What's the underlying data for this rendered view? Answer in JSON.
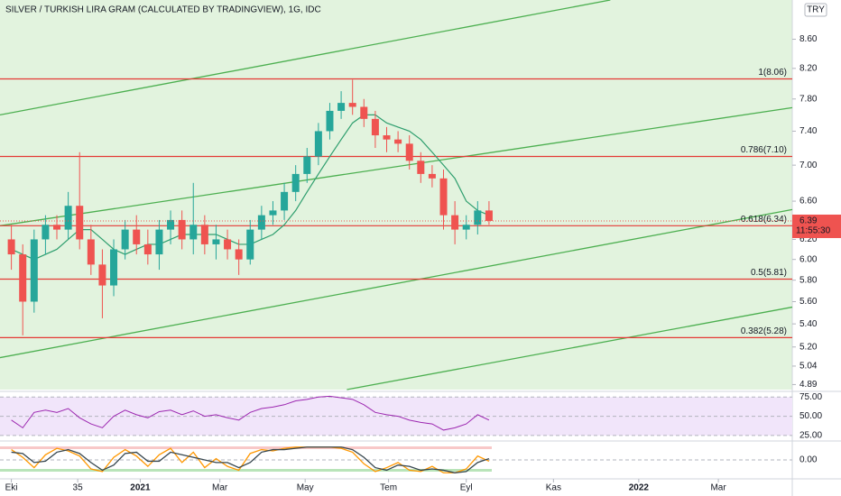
{
  "chart_data": {
    "type": "candlestick",
    "title": "SILVER / TURKISH LIRA GRAM (CALCULATED BY TRADINGVIEW), 1G, IDC",
    "currency": "TRY",
    "last_price": 6.39,
    "countdown": "11:55:30",
    "log_scale": true,
    "grid": false,
    "x": [
      0,
      6,
      12,
      18,
      24,
      30,
      36,
      42,
      48,
      54,
      60,
      66,
      72,
      78,
      84,
      90,
      96,
      102,
      108,
      114,
      120,
      126,
      132,
      138,
      144,
      150,
      156,
      162,
      168,
      174,
      180,
      186,
      192,
      198,
      204,
      210,
      216,
      222,
      228,
      234,
      240,
      246,
      252
    ],
    "open": [
      6.2,
      6.05,
      5.6,
      6.2,
      6.35,
      6.3,
      6.55,
      6.2,
      5.95,
      5.75,
      6.1,
      6.3,
      6.15,
      6.05,
      6.3,
      6.4,
      6.2,
      6.35,
      6.15,
      6.2,
      6.1,
      6.0,
      6.3,
      6.45,
      6.5,
      6.7,
      6.9,
      7.1,
      7.4,
      7.65,
      7.75,
      7.7,
      7.55,
      7.35,
      7.3,
      7.25,
      7.05,
      6.9,
      6.85,
      6.45,
      6.3,
      6.35,
      6.5
    ],
    "high": [
      6.35,
      6.15,
      6.3,
      6.45,
      6.45,
      6.7,
      7.15,
      6.35,
      6.1,
      6.2,
      6.4,
      6.45,
      6.3,
      6.4,
      6.5,
      6.5,
      6.8,
      6.45,
      6.35,
      6.3,
      6.2,
      6.4,
      6.55,
      6.6,
      6.8,
      7.0,
      7.2,
      7.5,
      7.75,
      7.9,
      8.05,
      7.8,
      7.65,
      7.45,
      7.4,
      7.35,
      7.15,
      7.0,
      6.95,
      6.6,
      6.45,
      6.6,
      6.6
    ],
    "low": [
      5.9,
      5.3,
      5.5,
      6.05,
      6.2,
      6.2,
      6.1,
      5.85,
      5.45,
      5.65,
      6.0,
      6.05,
      5.95,
      5.9,
      6.15,
      6.1,
      6.05,
      6.05,
      6.0,
      6.0,
      5.85,
      5.95,
      6.2,
      6.35,
      6.4,
      6.6,
      6.8,
      7.0,
      7.3,
      7.55,
      7.6,
      7.45,
      7.2,
      7.15,
      7.15,
      6.95,
      6.8,
      6.75,
      6.3,
      6.15,
      6.2,
      6.25,
      6.35
    ],
    "close": [
      6.05,
      5.6,
      6.2,
      6.35,
      6.3,
      6.55,
      6.2,
      5.95,
      5.75,
      6.1,
      6.3,
      6.15,
      6.05,
      6.3,
      6.4,
      6.2,
      6.35,
      6.15,
      6.2,
      6.1,
      6.0,
      6.3,
      6.45,
      6.5,
      6.7,
      6.9,
      7.1,
      7.4,
      7.65,
      7.75,
      7.7,
      7.55,
      7.35,
      7.3,
      7.25,
      7.05,
      6.9,
      6.85,
      6.45,
      6.3,
      6.35,
      6.5,
      6.39
    ],
    "up_color": "#26a69a",
    "down_color": "#ef5350",
    "ma": {
      "color": "#2e9e6e",
      "values": [
        6.1,
        6.05,
        6.0,
        6.05,
        6.1,
        6.2,
        6.3,
        6.3,
        6.2,
        6.1,
        6.05,
        6.1,
        6.15,
        6.15,
        6.2,
        6.25,
        6.25,
        6.25,
        6.25,
        6.2,
        6.15,
        6.15,
        6.2,
        6.25,
        6.35,
        6.5,
        6.7,
        6.9,
        7.1,
        7.3,
        7.5,
        7.6,
        7.6,
        7.5,
        7.45,
        7.4,
        7.3,
        7.15,
        7.0,
        6.85,
        6.6,
        6.5,
        6.45
      ]
    },
    "fib_color": "#e53935",
    "fib_levels": [
      {
        "value": 8.06,
        "label": "1(8.06)"
      },
      {
        "value": 7.1,
        "label": "0.786(7.10)"
      },
      {
        "value": 6.34,
        "label": "0.618(6.34)"
      },
      {
        "value": 5.81,
        "label": "0.5(5.81)"
      },
      {
        "value": 5.28,
        "label": "0.382(5.28)"
      }
    ],
    "trend_color": "#4caf50",
    "trend_lines": [
      {
        "x": [
          -6,
          316
        ],
        "y": [
          7.6,
          9.17
        ]
      },
      {
        "x": [
          -6,
          412
        ],
        "y": [
          6.34,
          7.69
        ]
      },
      {
        "x": [
          -6,
          412
        ],
        "y": [
          5.11,
          6.51
        ]
      },
      {
        "x": [
          177,
          412
        ],
        "y": [
          4.85,
          5.55
        ]
      }
    ],
    "xlim": [
      -6,
      412
    ],
    "xticks": [
      {
        "value": 0,
        "label": "Eki"
      },
      35,
      {
        "value": 68,
        "label": "2021"
      },
      {
        "value": 110,
        "label": "Mar"
      },
      {
        "value": 155,
        "label": "May"
      },
      {
        "value": 199,
        "label": "Tem"
      },
      {
        "value": 240,
        "label": "Eyl"
      },
      {
        "value": 286,
        "label": "Kas"
      },
      {
        "value": 331,
        "label": "2022"
      },
      {
        "value": 373,
        "label": "Mar"
      }
    ],
    "ylim": [
      4.85,
      9.17
    ],
    "yticks": [
      {
        "value": 8.6,
        "label": "8.60"
      },
      {
        "value": 8.2,
        "label": "8.20"
      },
      {
        "value": 7.8,
        "label": "7.80"
      },
      {
        "value": 7.4,
        "label": "7.40"
      },
      {
        "value": 7.0,
        "label": "7.00"
      },
      {
        "value": 6.6,
        "label": "6.60"
      },
      {
        "value": 6.2,
        "label": "6.20"
      },
      {
        "value": 6.0,
        "label": "6.00"
      },
      {
        "value": 5.8,
        "label": "5.80"
      },
      {
        "value": 5.6,
        "label": "5.60"
      },
      {
        "value": 5.4,
        "label": "5.40"
      },
      {
        "value": 5.2,
        "label": "5.20"
      },
      5.04,
      4.89
    ],
    "rsi": {
      "color": "#9c27b0",
      "ylim": [
        19,
        80
      ],
      "yticks": [
        {
          "value": 75,
          "label": "75.00"
        },
        {
          "value": 50,
          "label": "50.00"
        },
        {
          "value": 25,
          "label": "25.00"
        }
      ],
      "values": [
        45,
        35,
        55,
        58,
        55,
        60,
        48,
        40,
        35,
        50,
        58,
        52,
        48,
        56,
        58,
        52,
        57,
        50,
        52,
        48,
        45,
        55,
        60,
        62,
        65,
        70,
        72,
        75,
        76,
        74,
        72,
        65,
        55,
        52,
        50,
        45,
        42,
        40,
        32,
        35,
        40,
        52,
        45
      ]
    },
    "osc": {
      "ylim": [
        -1.4,
        1.4
      ],
      "yticks": [
        {
          "value": 0,
          "label": "0.00"
        }
      ],
      "series": [
        {
          "color": "#ff9800",
          "values": [
            0.8,
            0.2,
            -0.6,
            0.4,
            0.9,
            0.7,
            0.3,
            -0.7,
            -0.9,
            0.2,
            0.8,
            0.3,
            -0.5,
            0.4,
            0.9,
            -0.2,
            0.6,
            -0.6,
            0.1,
            -0.5,
            -0.8,
            0.5,
            0.8,
            0.7,
            0.9,
            1.0,
            1.0,
            1.0,
            1.0,
            0.9,
            0.6,
            -0.3,
            -0.9,
            -0.6,
            -0.2,
            -0.8,
            -0.9,
            -0.5,
            -1.0,
            -1.0,
            -0.7,
            0.3,
            -0.1
          ]
        },
        {
          "color": "#37474f",
          "values": [
            0.6,
            0.5,
            -0.2,
            -0.1,
            0.6,
            0.8,
            0.5,
            -0.2,
            -0.8,
            -0.4,
            0.5,
            0.6,
            -0.1,
            -0.1,
            0.6,
            0.4,
            0.2,
            0.0,
            -0.2,
            -0.2,
            -0.6,
            -0.2,
            0.6,
            0.8,
            0.8,
            0.9,
            1.0,
            1.0,
            1.0,
            1.0,
            0.8,
            0.2,
            -0.6,
            -0.8,
            -0.4,
            -0.5,
            -0.8,
            -0.7,
            -0.8,
            -1.0,
            -0.9,
            -0.2,
            0.1
          ]
        }
      ]
    }
  }
}
